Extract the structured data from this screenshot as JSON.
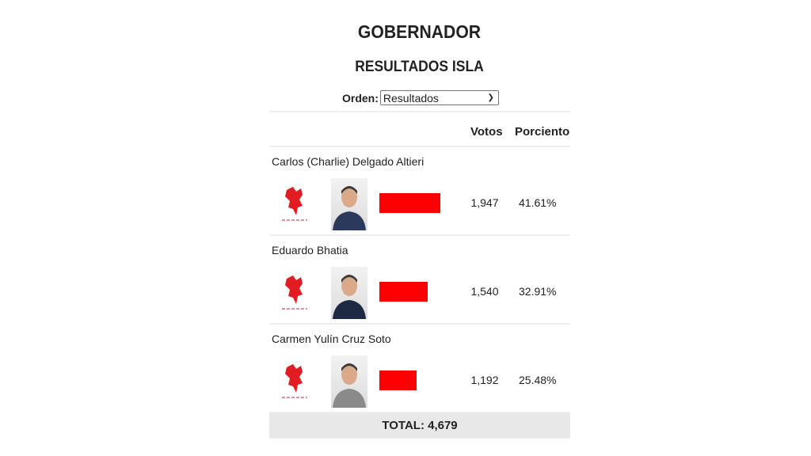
{
  "title": "GOBERNADOR",
  "subtitle": "RESULTADOS ISLA",
  "order": {
    "label": "Orden:",
    "selected": "Resultados"
  },
  "table": {
    "headers": {
      "votes": "Votos",
      "percent": "Porciento"
    },
    "candidates": [
      {
        "name": "Carlos (Charlie) Delgado Altieri",
        "votes": "1,947",
        "percent": "41.61%",
        "share": 41.61,
        "suit": "#2b3a5c"
      },
      {
        "name": "Eduardo Bhatia",
        "votes": "1,540",
        "percent": "32.91%",
        "share": 32.91,
        "suit": "#1e2a44"
      },
      {
        "name": "Carmen Yulín Cruz Soto",
        "votes": "1,192",
        "percent": "25.48%",
        "share": 25.48,
        "suit": "#8a8a8a"
      }
    ],
    "total": "TOTAL: 4,679"
  },
  "colors": {
    "bar": "#ff0000",
    "party": "#e31b23"
  }
}
